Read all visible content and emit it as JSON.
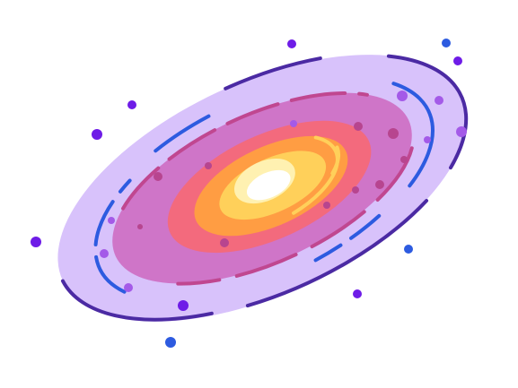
{
  "illustration": {
    "subject": "galaxy-icon",
    "palette": {
      "outer_disk": "#d8c2fb",
      "outer_outline": "#4b2aa3",
      "middle_disk": "#cf75c8",
      "middle_stroke": "#c04790",
      "inner_ring": "#f36a7d",
      "core_orange": "#ff9d43",
      "core_yellow": "#ffd05a",
      "core_highlight": "#ffffff",
      "core_glow": "#fff4ba",
      "star_purple": "#6e1ce7",
      "star_blue": "#2d5be0",
      "star_violet": "#a45ae8",
      "star_magenta": "#b7458f",
      "arc_blue": "#2d5be0"
    }
  }
}
